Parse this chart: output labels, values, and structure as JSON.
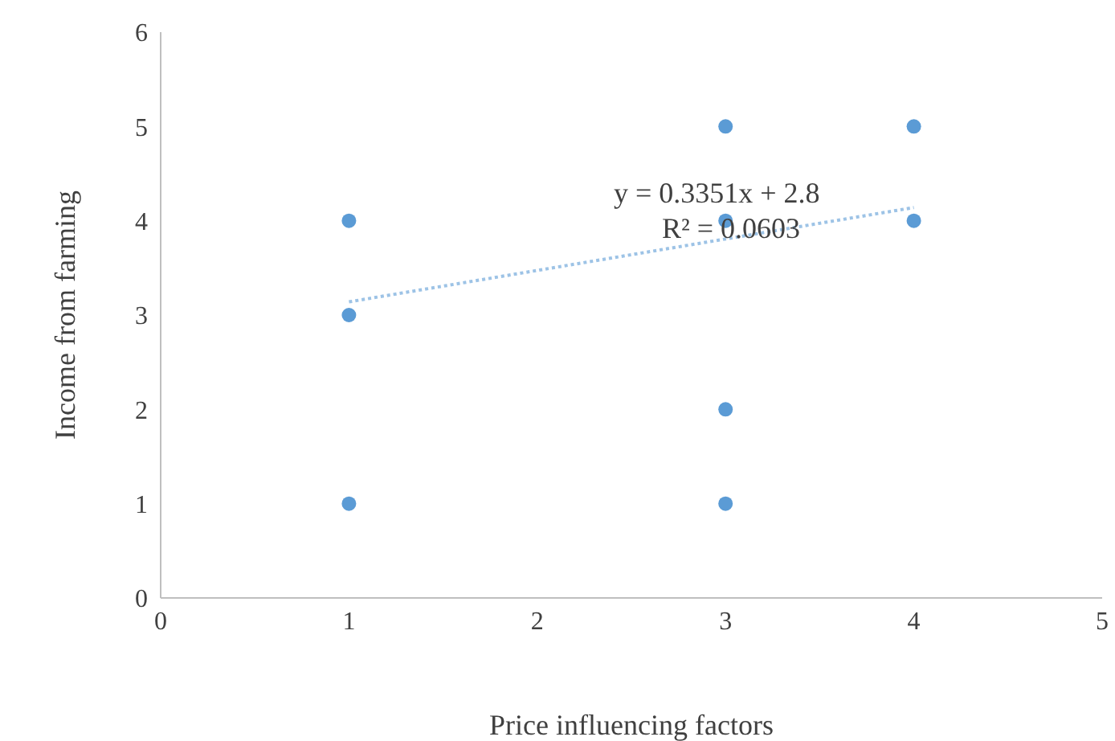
{
  "chart_data": {
    "type": "scatter",
    "xlabel": "Price influencing factors",
    "ylabel": "Income from farming",
    "xlim": [
      0,
      5
    ],
    "xticks": [
      0,
      1,
      2,
      3,
      4,
      5
    ],
    "ylim": [
      0,
      6
    ],
    "yticks": [
      0,
      1,
      2,
      3,
      4,
      5,
      6
    ],
    "grid": false,
    "legend": false,
    "series": [
      {
        "color": "#5b9bd5",
        "marker": "circle",
        "x": [
          1,
          1,
          1,
          3,
          3,
          3,
          3,
          4,
          4
        ],
        "values": [
          4,
          3,
          1,
          5,
          4,
          2,
          1,
          5,
          4
        ]
      },
      {
        "type": "line",
        "color": "#9dc3e6",
        "line_style": "dotted",
        "marker": "none",
        "x": [
          1,
          4
        ],
        "values": [
          3.14,
          4.14
        ]
      }
    ],
    "annotations": [
      "y = 0.3351x + 2.8",
      "R² = 0.0603"
    ]
  }
}
